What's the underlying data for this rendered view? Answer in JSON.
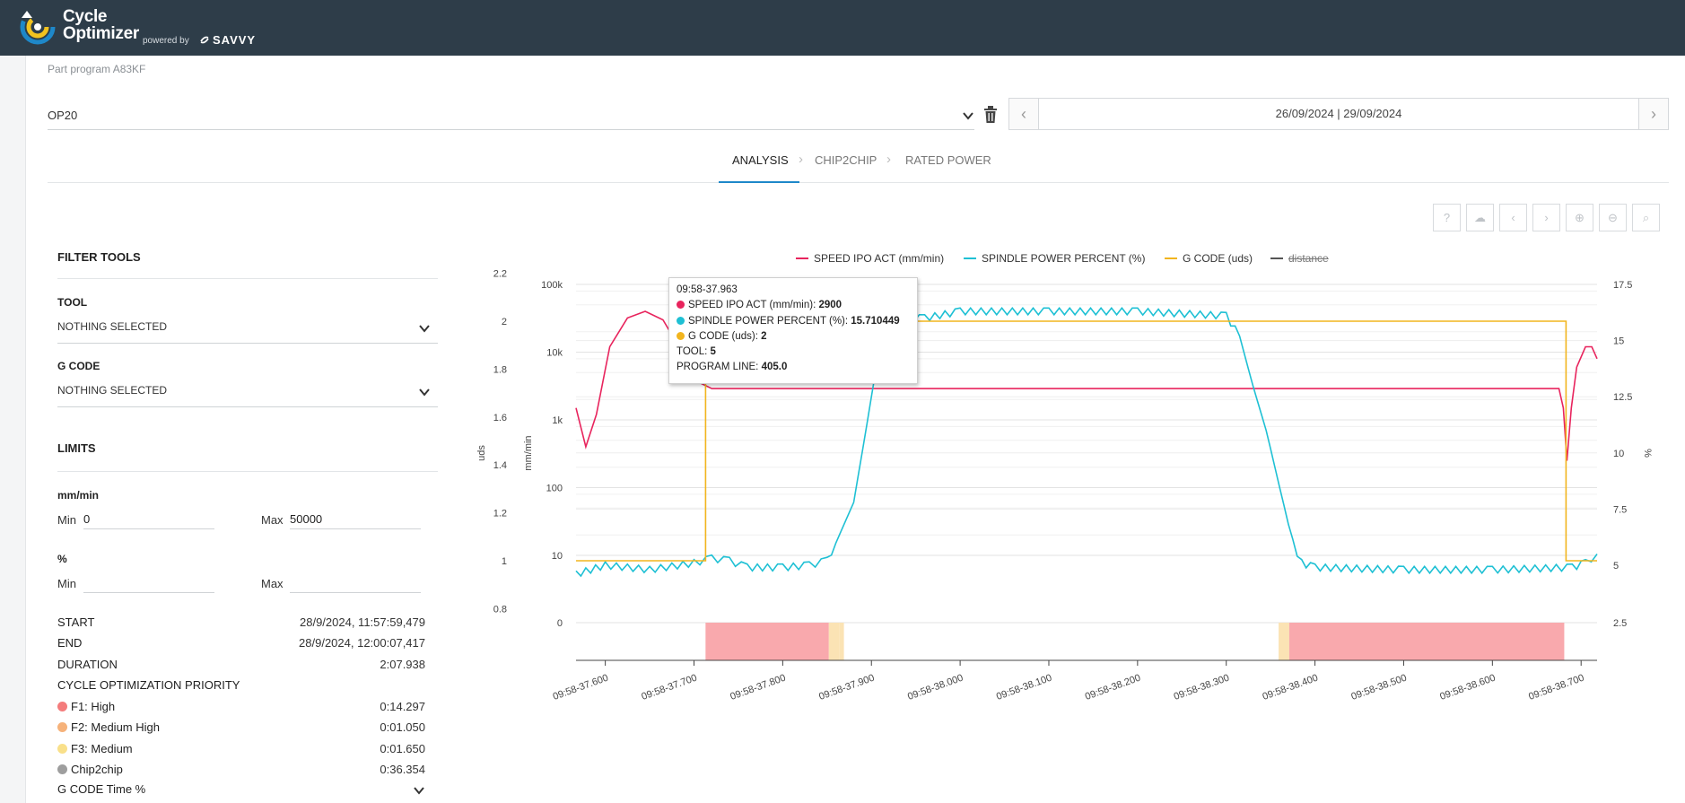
{
  "app": {
    "name_line1": "Cycle",
    "name_line2": "Optimizer",
    "powered_by": "powered by",
    "brand": "SAVVY"
  },
  "breadcrumb": "Part program A83KF",
  "operation_select": {
    "value": "OP20"
  },
  "date_range": {
    "value": "26/09/2024 | 29/09/2024"
  },
  "tabs": [
    {
      "label": "ANALYSIS",
      "active": true
    },
    {
      "label": "CHIP2CHIP",
      "active": false
    },
    {
      "label": "RATED POWER",
      "active": false
    }
  ],
  "toolbar_icons": [
    "help-icon",
    "cloud-download-icon",
    "chevron-left-icon",
    "chevron-right-icon",
    "zoom-in-icon",
    "zoom-out-icon",
    "search-icon"
  ],
  "filter_tools": {
    "title": "FILTER TOOLS",
    "tool_label": "TOOL",
    "tool_value": "NOTHING SELECTED",
    "gcode_label": "G CODE",
    "gcode_value": "NOTHING SELECTED"
  },
  "limits": {
    "title": "LIMITS",
    "speed_unit": "mm/min",
    "speed_min_label": "Min",
    "speed_min_value": "0",
    "speed_max_label": "Max",
    "speed_max_value": "50000",
    "pct_unit": "%",
    "pct_min_label": "Min",
    "pct_min_value": "",
    "pct_max_label": "Max",
    "pct_max_value": ""
  },
  "stats": {
    "start_label": "START",
    "start_value": "28/9/2024, 11:57:59,479",
    "end_label": "END",
    "end_value": "28/9/2024, 12:00:07,417",
    "duration_label": "DURATION",
    "duration_value": "2:07.938",
    "priority_title": "CYCLE OPTIMIZATION PRIORITY",
    "f1_label": "F1: High",
    "f1_value": "0:14.297",
    "f2_label": "F2: Medium High",
    "f2_value": "0:01.050",
    "f3_label": "F3: Medium",
    "f3_value": "0:01.650",
    "c2c_label": "Chip2chip",
    "c2c_value": "0:36.354",
    "gcode_time_label": "G CODE Time %"
  },
  "colors": {
    "speed": "#e8245d",
    "spindle": "#1ec0d4",
    "gcode": "#f2b51e",
    "distance": "#555555",
    "f1": "#f47c7c",
    "f2": "#f6b27a",
    "f3": "#f9e08a",
    "chip2chip": "#9e9e9e",
    "band_high": "#f9a9ad",
    "band_medium": "#fbe3b4"
  },
  "chart_data": {
    "type": "line",
    "legend": [
      {
        "name": "SPEED IPO ACT (mm/min)",
        "hidden": false
      },
      {
        "name": "SPINDLE POWER PERCENT (%)",
        "hidden": false
      },
      {
        "name": "G CODE (uds)",
        "hidden": false
      },
      {
        "name": "distance",
        "hidden": true
      }
    ],
    "y_axes": [
      {
        "label": "uds",
        "ticks": [
          "2.2",
          "2",
          "1.8",
          "1.6",
          "1.4",
          "1.2",
          "1",
          "0.8"
        ]
      },
      {
        "label": "mm/min",
        "scale": "log",
        "ticks": [
          "100k",
          "10k",
          "1k",
          "100",
          "10",
          "0"
        ]
      },
      {
        "label": "%",
        "ticks": [
          "17.5",
          "15",
          "12.5",
          "10",
          "7.5",
          "5",
          "2.5"
        ]
      }
    ],
    "x_ticks": [
      "09:58-37.600",
      "09:58-37.700",
      "09:58-37.800",
      "09:58-37.900",
      "09:58-38.000",
      "09:58-38.100",
      "09:58-38.200",
      "09:58-38.300",
      "09:58-38.400",
      "09:58-38.500",
      "09:58-38.600",
      "09:58-38.700"
    ],
    "x_range_s": [
      37.567,
      38.718
    ],
    "series": [
      {
        "name": "SPEED IPO ACT (mm/min)",
        "axis": "mm/min",
        "points": [
          [
            37.567,
            1500
          ],
          [
            37.578,
            400
          ],
          [
            37.59,
            1200
          ],
          [
            37.605,
            12000
          ],
          [
            37.625,
            32000
          ],
          [
            37.645,
            40000
          ],
          [
            37.665,
            30000
          ],
          [
            37.68,
            14000
          ],
          [
            37.695,
            6000
          ],
          [
            37.707,
            3500
          ],
          [
            37.72,
            2900
          ],
          [
            38.675,
            2900
          ],
          [
            38.68,
            1500
          ],
          [
            38.684,
            250
          ],
          [
            38.689,
            1500
          ],
          [
            38.695,
            6000
          ],
          [
            38.705,
            12000
          ],
          [
            38.712,
            12000
          ],
          [
            38.718,
            8000
          ]
        ]
      },
      {
        "name": "SPINDLE POWER PERCENT (%)",
        "axis": "%",
        "points": [
          [
            37.567,
            4.6
          ],
          [
            37.6,
            5.0
          ],
          [
            37.65,
            4.8
          ],
          [
            37.7,
            5.1
          ],
          [
            37.72,
            5.3
          ],
          [
            37.74,
            5.2
          ],
          [
            37.76,
            4.9
          ],
          [
            37.8,
            4.9
          ],
          [
            37.83,
            5.0
          ],
          [
            37.85,
            5.2
          ],
          [
            37.86,
            6.0
          ],
          [
            37.88,
            7.8
          ],
          [
            37.895,
            11.3
          ],
          [
            37.905,
            13.7
          ],
          [
            37.915,
            15.9
          ],
          [
            37.93,
            16.0
          ],
          [
            37.96,
            16.0
          ],
          [
            38.0,
            16.3
          ],
          [
            38.1,
            16.3
          ],
          [
            38.2,
            16.3
          ],
          [
            38.3,
            16.1
          ],
          [
            38.315,
            15.2
          ],
          [
            38.33,
            13.0
          ],
          [
            38.345,
            11.0
          ],
          [
            38.36,
            8.5
          ],
          [
            38.375,
            6.0
          ],
          [
            38.385,
            5.1
          ],
          [
            38.4,
            4.9
          ],
          [
            38.5,
            4.8
          ],
          [
            38.6,
            4.8
          ],
          [
            38.69,
            4.9
          ],
          [
            38.705,
            5.1
          ],
          [
            38.718,
            5.5
          ]
        ]
      },
      {
        "name": "G CODE (uds)",
        "axis": "uds",
        "points": [
          [
            37.567,
            1.0
          ],
          [
            37.713,
            1.0
          ],
          [
            37.713,
            2.0
          ],
          [
            38.683,
            2.0
          ],
          [
            38.683,
            1.0
          ],
          [
            38.718,
            1.0
          ]
        ]
      }
    ],
    "priority_bands": [
      {
        "start": 37.713,
        "end": 37.852,
        "level": "high"
      },
      {
        "start": 37.852,
        "end": 37.864,
        "level": "medium"
      },
      {
        "start": 37.864,
        "end": 37.869,
        "level": "medium"
      },
      {
        "start": 38.359,
        "end": 38.371,
        "level": "medium"
      },
      {
        "start": 38.371,
        "end": 38.681,
        "level": "high"
      }
    ],
    "tooltip": {
      "time": "09:58-37.963",
      "speed_label": "SPEED IPO ACT (mm/min): ",
      "speed_value": "2900",
      "spindle_label": "SPINDLE POWER PERCENT (%): ",
      "spindle_value": "15.710449",
      "gcode_label": "G CODE (uds): ",
      "gcode_value": "2",
      "tool_label": "TOOL: ",
      "tool_value": "5",
      "line_label": "PROGRAM LINE: ",
      "line_value": "405.0"
    }
  }
}
